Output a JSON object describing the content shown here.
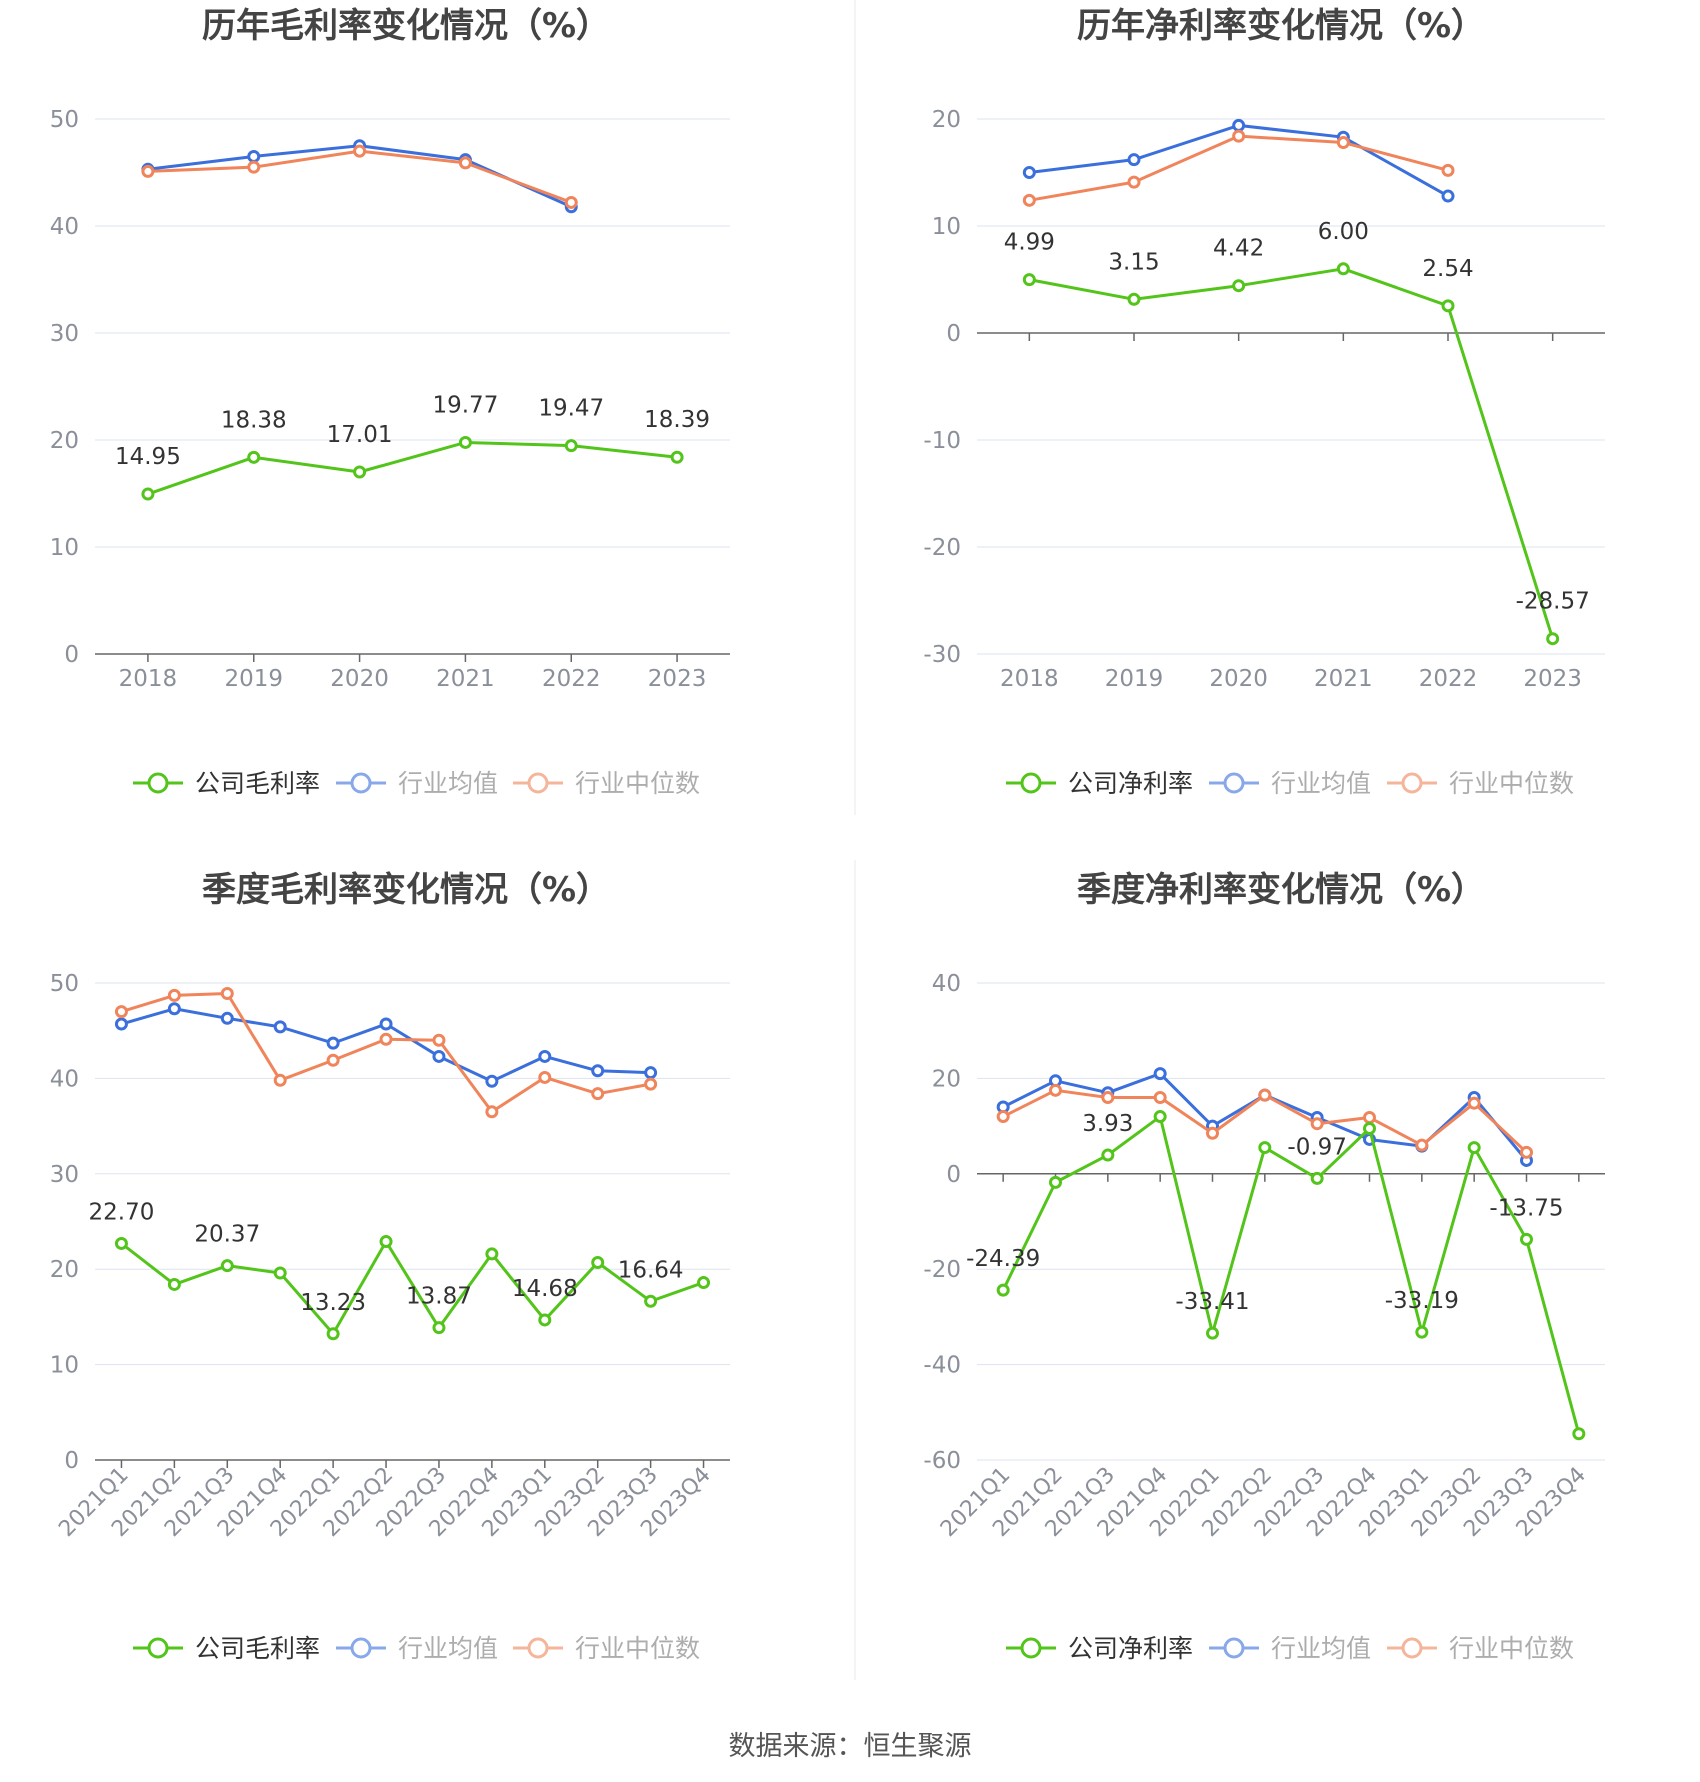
{
  "colors": {
    "company": "#52c41a",
    "avg": "#3a6fdc",
    "median": "#f0845a",
    "grid": "#dde3ef",
    "axis": "#666666",
    "tick_text": "#8a8f99",
    "title": "#444444",
    "divider": "#e8e8e8"
  },
  "source_text": "数据来源：恒生聚源",
  "chart_data": [
    {
      "type": "line",
      "title": "历年毛利率变化情况（%）",
      "categories": [
        "2018",
        "2019",
        "2020",
        "2021",
        "2022",
        "2023"
      ],
      "ylim": [
        0,
        50
      ],
      "yticks": [
        "0",
        "10",
        "20",
        "30",
        "40",
        "50"
      ],
      "grid": true,
      "legend_position": "bottom",
      "series": [
        {
          "name": "公司毛利率",
          "key": "company",
          "values": [
            14.95,
            18.38,
            17.01,
            19.77,
            19.47,
            18.39
          ],
          "labels": [
            "14.95",
            "18.38",
            "17.01",
            "19.77",
            "19.47",
            "18.39"
          ]
        },
        {
          "name": "行业均值",
          "key": "avg",
          "values": [
            45.3,
            46.5,
            47.5,
            46.2,
            41.8,
            null
          ]
        },
        {
          "name": "行业中位数",
          "key": "median",
          "values": [
            45.1,
            45.5,
            47.0,
            45.9,
            42.2,
            null
          ]
        }
      ]
    },
    {
      "type": "line",
      "title": "历年净利率变化情况（%）",
      "categories": [
        "2018",
        "2019",
        "2020",
        "2021",
        "2022",
        "2023"
      ],
      "ylim": [
        -30,
        20
      ],
      "yticks": [
        "-30",
        "-20",
        "-10",
        "0",
        "10",
        "20"
      ],
      "grid": true,
      "legend_position": "bottom",
      "series": [
        {
          "name": "公司净利率",
          "key": "company",
          "values": [
            4.99,
            3.15,
            4.42,
            6.0,
            2.54,
            -28.57
          ],
          "labels": [
            "4.99",
            "3.15",
            "4.42",
            "6.00",
            "2.54",
            "-28.57"
          ]
        },
        {
          "name": "行业均值",
          "key": "avg",
          "values": [
            15.0,
            16.2,
            19.4,
            18.3,
            12.8,
            null
          ]
        },
        {
          "name": "行业中位数",
          "key": "median",
          "values": [
            12.4,
            14.1,
            18.4,
            17.8,
            15.2,
            null
          ]
        }
      ]
    },
    {
      "type": "line",
      "title": "季度毛利率变化情况（%）",
      "categories": [
        "2021Q1",
        "2021Q2",
        "2021Q3",
        "2021Q4",
        "2022Q1",
        "2022Q2",
        "2022Q3",
        "2022Q4",
        "2023Q1",
        "2023Q2",
        "2023Q3",
        "2023Q4"
      ],
      "ylim": [
        0,
        50
      ],
      "yticks": [
        "0",
        "10",
        "20",
        "30",
        "40",
        "50"
      ],
      "grid": true,
      "legend_position": "bottom",
      "series": [
        {
          "name": "公司毛利率",
          "key": "company",
          "values": [
            22.7,
            18.4,
            20.37,
            19.6,
            13.23,
            22.9,
            13.87,
            21.6,
            14.68,
            20.7,
            16.64,
            18.6
          ],
          "labels": [
            "22.70",
            "",
            "20.37",
            "",
            "13.23",
            "",
            "13.87",
            "",
            "14.68",
            "",
            "16.64",
            ""
          ]
        },
        {
          "name": "行业均值",
          "key": "avg",
          "values": [
            45.7,
            47.3,
            46.3,
            45.4,
            43.7,
            45.7,
            42.3,
            39.7,
            42.3,
            40.8,
            40.6,
            null
          ]
        },
        {
          "name": "行业中位数",
          "key": "median",
          "values": [
            47.0,
            48.7,
            48.9,
            39.8,
            41.9,
            44.1,
            44.0,
            36.5,
            40.1,
            38.4,
            39.4,
            null
          ]
        }
      ]
    },
    {
      "type": "line",
      "title": "季度净利率变化情况（%）",
      "categories": [
        "2021Q1",
        "2021Q2",
        "2021Q3",
        "2021Q4",
        "2022Q1",
        "2022Q2",
        "2022Q3",
        "2022Q4",
        "2023Q1",
        "2023Q2",
        "2023Q3",
        "2023Q4"
      ],
      "ylim": [
        -60,
        40
      ],
      "yticks": [
        "-60",
        "-40",
        "-20",
        "0",
        "20",
        "40"
      ],
      "grid": true,
      "legend_position": "bottom",
      "series": [
        {
          "name": "公司净利率",
          "key": "company",
          "values": [
            -24.39,
            -1.8,
            3.93,
            12.0,
            -33.41,
            5.5,
            -0.97,
            9.5,
            -33.19,
            5.5,
            -13.75,
            -54.5
          ],
          "labels": [
            "-24.39",
            "",
            "3.93",
            "",
            "-33.41",
            "",
            "-0.97",
            "",
            "-33.19",
            "",
            "-13.75",
            ""
          ]
        },
        {
          "name": "行业均值",
          "key": "avg",
          "values": [
            14.0,
            19.5,
            17.0,
            21.0,
            10.0,
            16.5,
            11.8,
            7.2,
            5.8,
            16.0,
            2.8,
            null
          ]
        },
        {
          "name": "行业中位数",
          "key": "median",
          "values": [
            12.0,
            17.5,
            16.0,
            16.0,
            8.5,
            16.5,
            10.5,
            11.8,
            6.0,
            14.8,
            4.5,
            null
          ]
        }
      ]
    }
  ]
}
